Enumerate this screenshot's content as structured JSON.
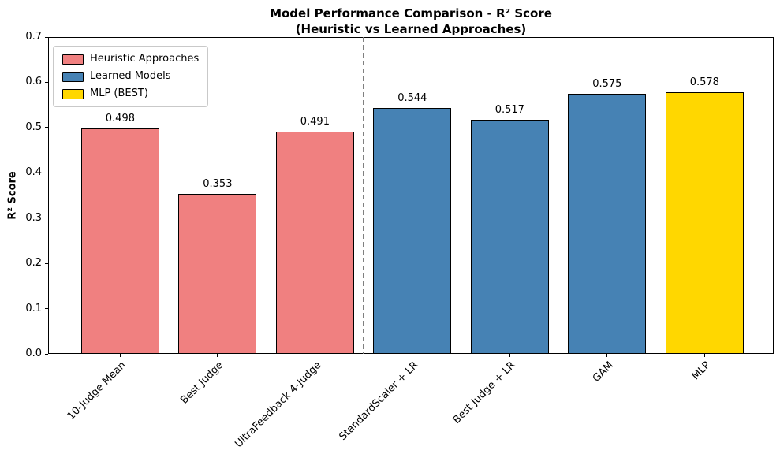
{
  "figure": {
    "background": "#ffffff"
  },
  "chart_data": {
    "type": "bar",
    "title": "Model Performance Comparison - R² Score\n(Heuristic vs Learned Approaches)",
    "title_line1": "Model Performance Comparison - R² Score",
    "title_line2": "(Heuristic vs Learned Approaches)",
    "ylabel": "R² Score",
    "xlabel": "",
    "categories": [
      "10-Judge Mean",
      "Best Judge",
      "UltraFeedback 4-Judge",
      "StandardScaler + LR",
      "Best Judge + LR",
      "GAM",
      "MLP"
    ],
    "values": [
      0.498,
      0.353,
      0.491,
      0.544,
      0.517,
      0.575,
      0.578
    ],
    "value_labels": [
      "0.498",
      "0.353",
      "0.491",
      "0.544",
      "0.517",
      "0.575",
      "0.578"
    ],
    "bar_colors": [
      "#F08080",
      "#F08080",
      "#F08080",
      "#4682B4",
      "#4682B4",
      "#4682B4",
      "#FFD700"
    ],
    "bar_groups": [
      "heuristic",
      "heuristic",
      "heuristic",
      "learned",
      "learned",
      "learned",
      "mlp-best"
    ],
    "bar_edge_color": "#000000",
    "ylim": [
      0,
      0.7
    ],
    "xlim": [
      -0.74,
      6.71
    ],
    "bar_width": 0.8,
    "yticks": [
      "0.0",
      "0.1",
      "0.2",
      "0.3",
      "0.4",
      "0.5",
      "0.6",
      "0.7"
    ],
    "grid": "off",
    "separator_x": 2.5,
    "separator_color": "#808080",
    "separator_style": "dashed",
    "legend_position": "upper-left",
    "legend": [
      {
        "label": "Heuristic Approaches",
        "color": "#F08080"
      },
      {
        "label": "Learned Models",
        "color": "#4682B4"
      },
      {
        "label": "MLP (BEST)",
        "color": "#FFD700"
      }
    ]
  }
}
